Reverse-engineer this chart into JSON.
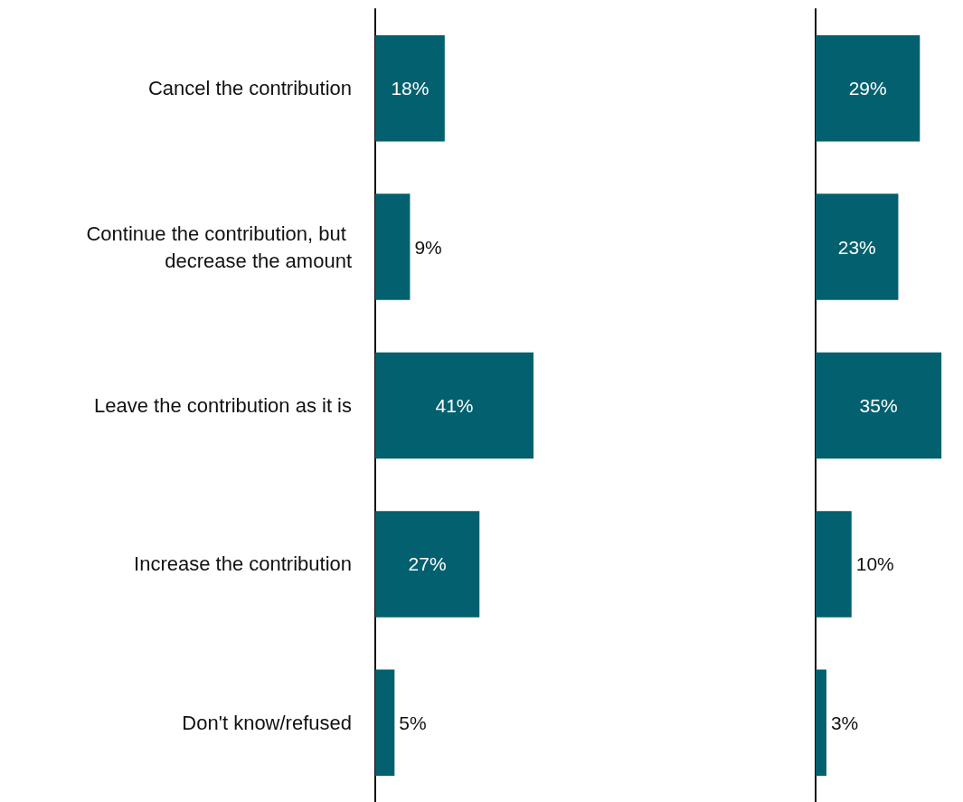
{
  "chart_data": [
    {
      "type": "bar",
      "orientation": "horizontal",
      "categories": [
        "Cancel the contribution",
        "Continue the contribution, but decrease the amount",
        "Leave the contribution as it is",
        "Increase the contribution",
        "Don't know/refused"
      ],
      "values": [
        18,
        9,
        41,
        27,
        5
      ],
      "value_labels": [
        "18%",
        "9%",
        "41%",
        "27%",
        "5%"
      ],
      "color": "#03606f",
      "tick_labels": "y"
    },
    {
      "type": "bar",
      "orientation": "horizontal",
      "categories": [
        "Cancel the contribution",
        "Continue the contribution, but decrease the amount",
        "Leave the contribution as it is",
        "Increase the contribution",
        "Don't know/refused"
      ],
      "values": [
        29,
        23,
        35,
        10,
        3
      ],
      "value_labels": [
        "29%",
        "23%",
        "35%",
        "10%",
        "3%"
      ],
      "color": "#03606f",
      "tick_labels": false
    }
  ]
}
